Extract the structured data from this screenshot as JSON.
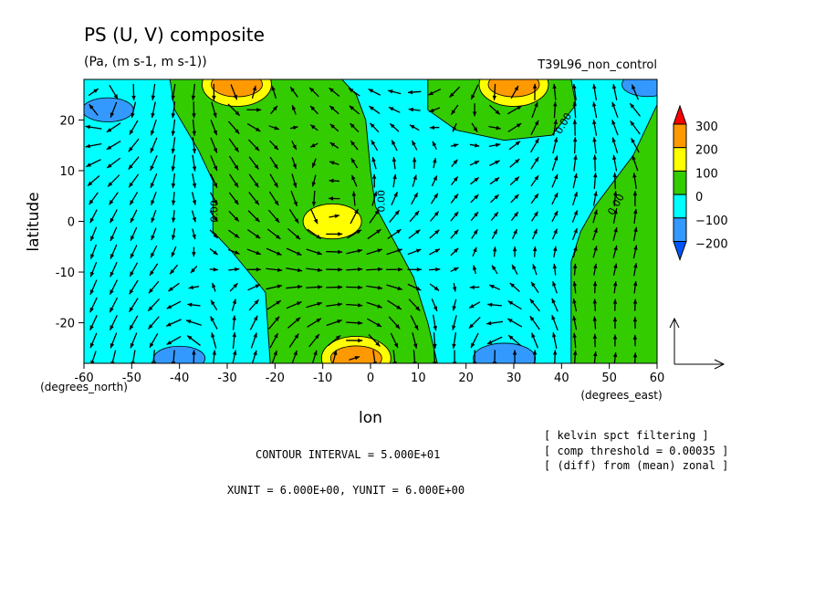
{
  "chart_data": {
    "type": "heatmap",
    "title": "PS (U, V) composite",
    "subtitle": "(Pa, (m s-1, m s-1))",
    "run_label": "T39L96_non_control",
    "xlabel": "lon",
    "ylabel": "latitude",
    "x_unit_label": "(degrees_east)",
    "y_unit_label": "(degrees_north)",
    "xlim": [
      -60,
      60
    ],
    "ylim": [
      -28,
      28
    ],
    "x_ticks": [
      "-60",
      "-50",
      "-40",
      "-30",
      "-20",
      "-10",
      "0",
      "10",
      "20",
      "30",
      "40",
      "50",
      "60"
    ],
    "x_tick_values": [
      -60,
      -50,
      -40,
      -30,
      -20,
      -10,
      0,
      10,
      20,
      30,
      40,
      50,
      60
    ],
    "y_ticks": [
      "20",
      "10",
      "0",
      "-10",
      "-20"
    ],
    "y_tick_values": [
      20,
      10,
      0,
      -10,
      -20
    ],
    "colorbar": {
      "labels": [
        "300",
        "200",
        "100",
        "0",
        "−100",
        "−200"
      ],
      "levels": [
        300,
        200,
        100,
        0,
        -100,
        -200
      ],
      "colors": [
        "#ff0000",
        "#ff9900",
        "#ffff00",
        "#33cc00",
        "#00ffff",
        "#3399ff",
        "#0055ff"
      ]
    },
    "contour_labels": [
      "0.00",
      "0.00",
      "0.00",
      "0.00"
    ],
    "contour_interval": "CONTOUR INTERVAL = 5.000E+01",
    "unit_vector": "XUNIT = 6.000E+00, YUNIT = 6.000E+00",
    "notes": [
      "[ kelvin spct filtering ]",
      "[ comp threshold = 0.00035 ]",
      "[ (diff) from (mean) zonal ]"
    ],
    "features": [
      {
        "kind": "positive",
        "label": "100-200",
        "lon": -28,
        "lat": 27,
        "value": 150
      },
      {
        "kind": "positive",
        "label": "100-200",
        "lon": 30,
        "lat": 27,
        "value": 150
      },
      {
        "kind": "positive",
        "label": "100-200",
        "lon": -8,
        "lat": 0,
        "value": 120
      },
      {
        "kind": "positive",
        "label": "100-200",
        "lon": -3,
        "lat": -27,
        "value": 180
      },
      {
        "kind": "negative",
        "label": "-100 to -200",
        "lon": -55,
        "lat": 22,
        "value": -120
      },
      {
        "kind": "negative",
        "label": "-100 to -200",
        "lon": -40,
        "lat": -27,
        "value": -130
      },
      {
        "kind": "negative",
        "label": "-100 to -200",
        "lon": 28,
        "lat": -27,
        "value": -150
      },
      {
        "kind": "negative",
        "label": "-100 to -200",
        "lon": 58,
        "lat": 27,
        "value": -120
      }
    ]
  }
}
